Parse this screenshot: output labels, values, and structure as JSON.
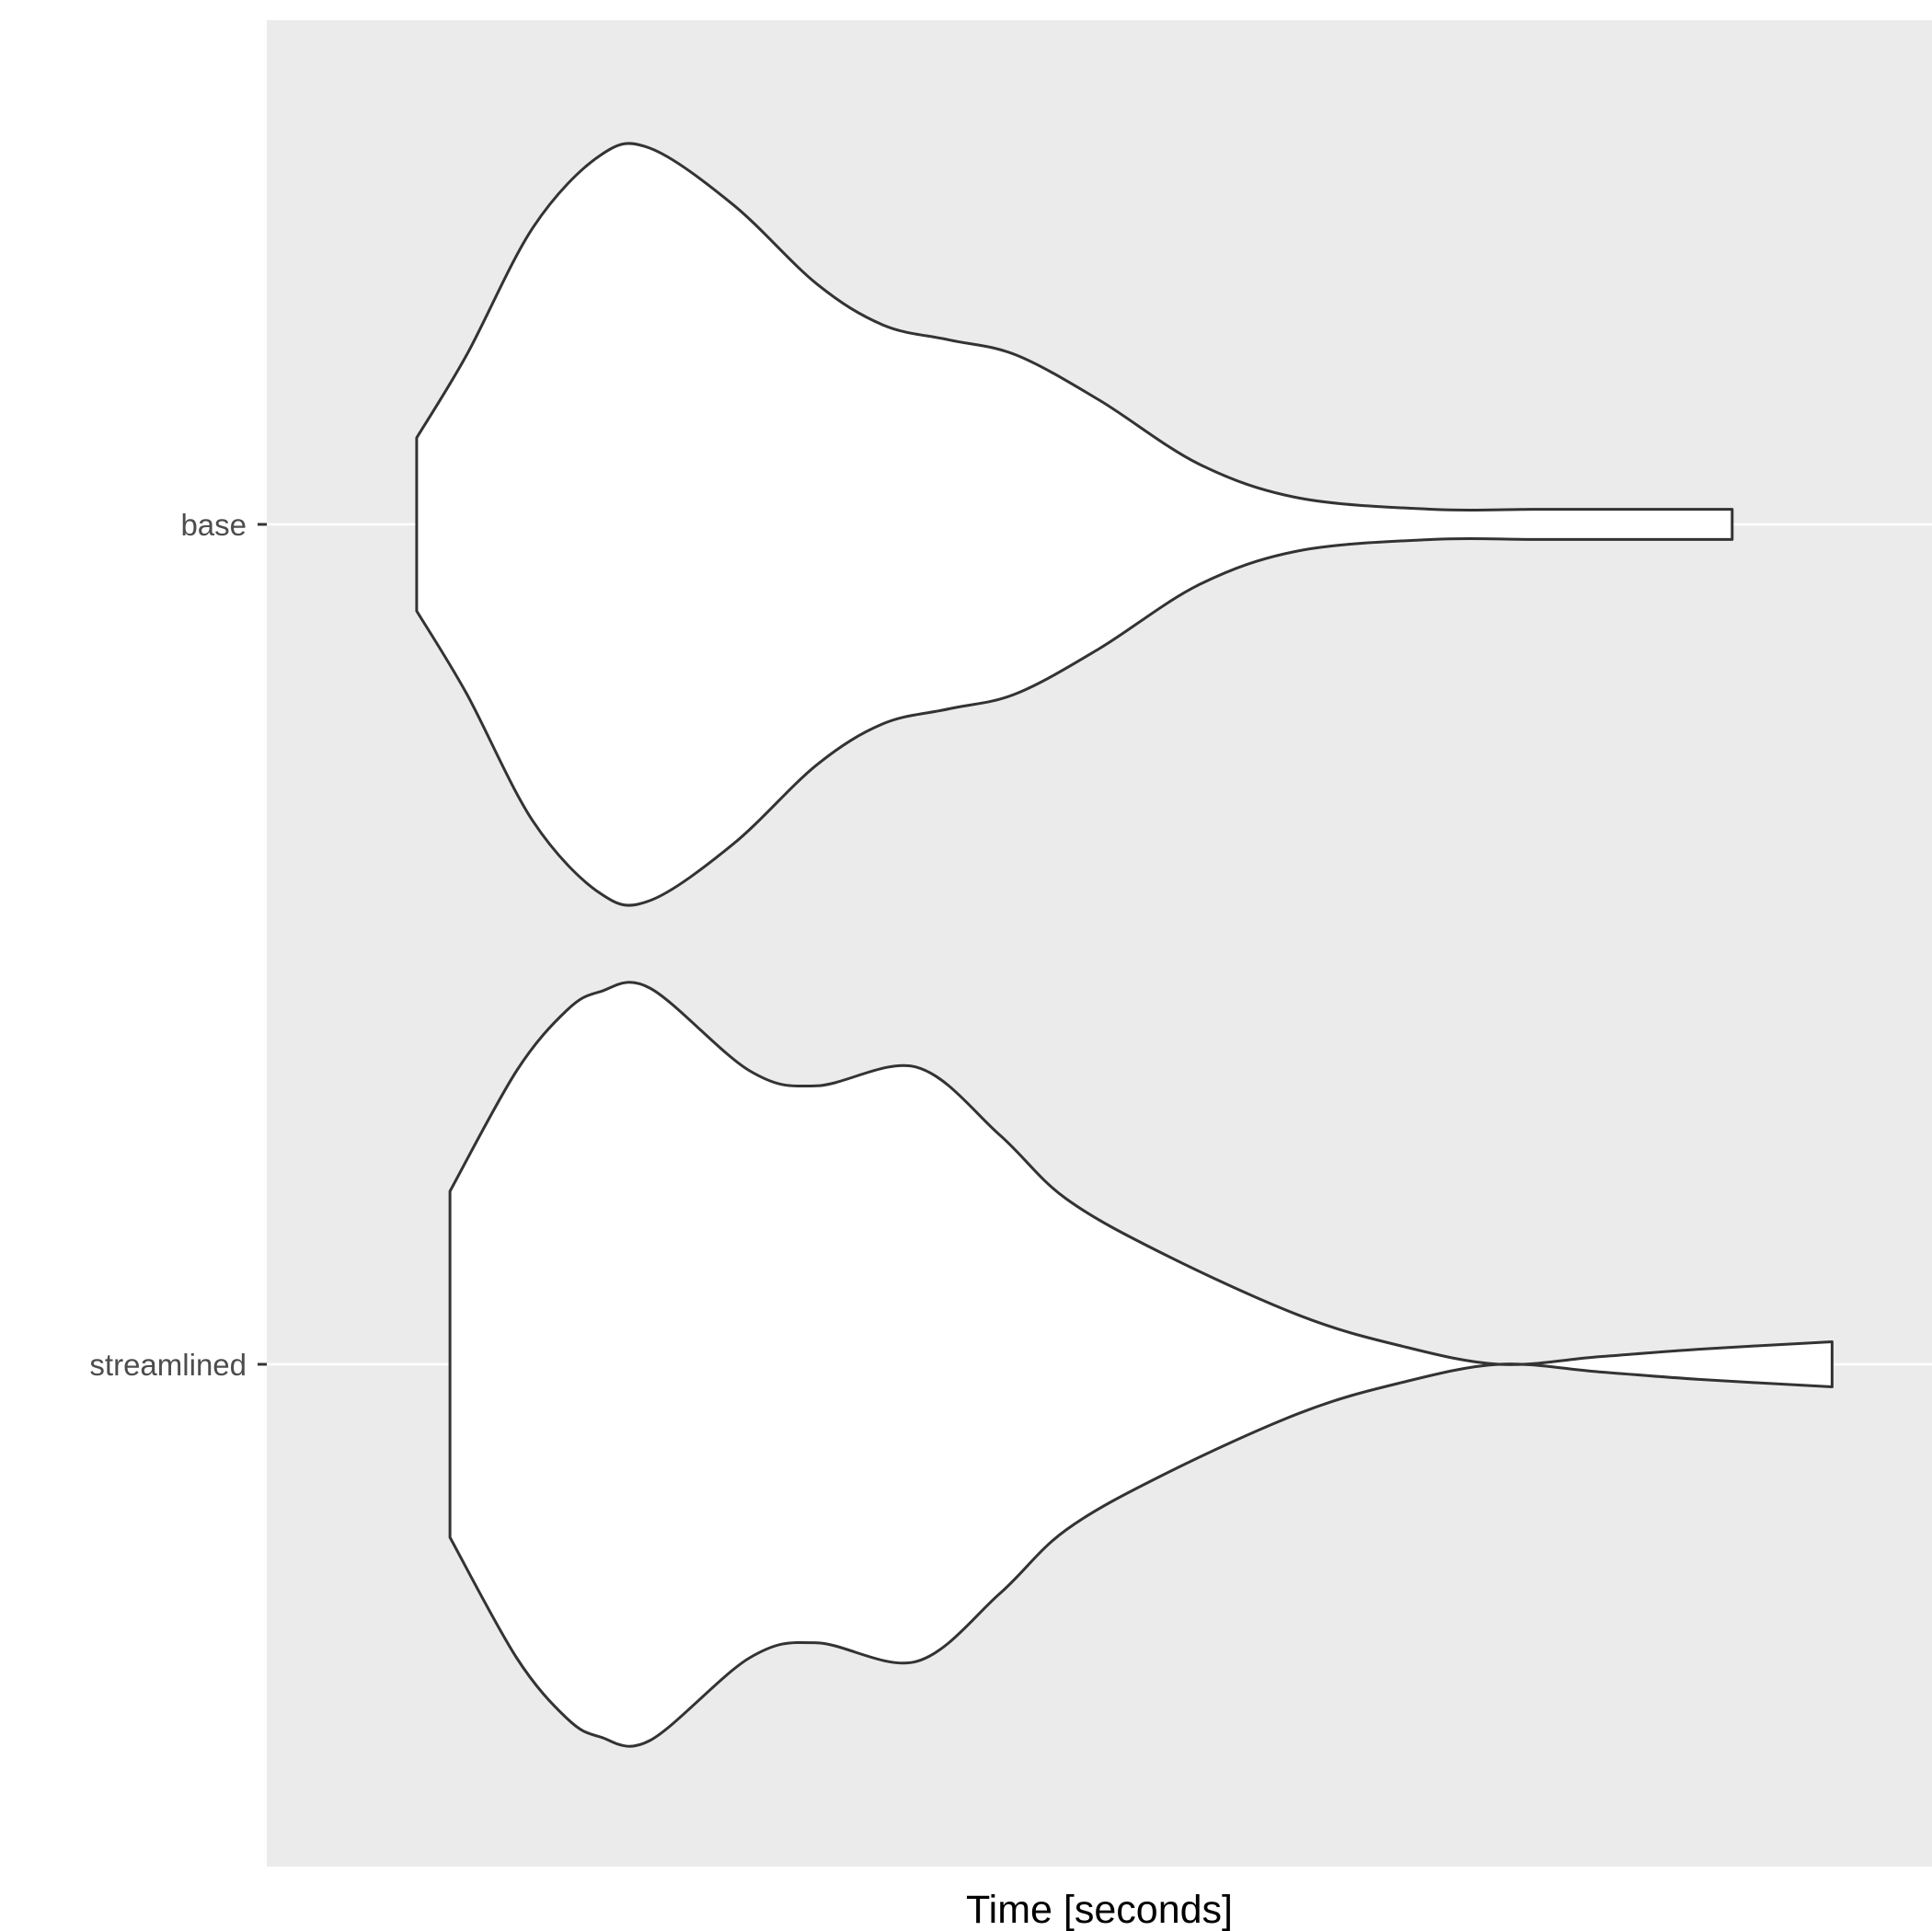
{
  "chart_data": {
    "type": "violin",
    "orientation": "horizontal",
    "xlabel": "Time [seconds]",
    "ylabel": "",
    "x_tick_labels": [],
    "categories": [
      "base",
      "streamlined"
    ],
    "grid": true,
    "legend": "none",
    "series": [
      {
        "category": "base",
        "range": [
          0.09,
          0.88
        ],
        "density": [
          [
            0.09,
            0.23
          ],
          [
            0.12,
            0.45
          ],
          [
            0.16,
            0.79
          ],
          [
            0.2,
            0.98
          ],
          [
            0.23,
            1.0
          ],
          [
            0.28,
            0.85
          ],
          [
            0.33,
            0.64
          ],
          [
            0.37,
            0.53
          ],
          [
            0.41,
            0.49
          ],
          [
            0.45,
            0.45
          ],
          [
            0.5,
            0.33
          ],
          [
            0.56,
            0.16
          ],
          [
            0.62,
            0.07
          ],
          [
            0.7,
            0.04
          ],
          [
            0.76,
            0.04
          ],
          [
            0.82,
            0.04
          ],
          [
            0.88,
            0.04
          ]
        ]
      },
      {
        "category": "streamlined",
        "range": [
          0.11,
          0.94
        ],
        "density": [
          [
            0.11,
            0.46
          ],
          [
            0.15,
            0.78
          ],
          [
            0.18,
            0.94
          ],
          [
            0.2,
            0.99
          ],
          [
            0.23,
            1.0
          ],
          [
            0.29,
            0.78
          ],
          [
            0.33,
            0.74
          ],
          [
            0.39,
            0.79
          ],
          [
            0.44,
            0.61
          ],
          [
            0.48,
            0.44
          ],
          [
            0.54,
            0.29
          ],
          [
            0.62,
            0.13
          ],
          [
            0.68,
            0.05
          ],
          [
            0.74,
            0.0
          ],
          [
            0.8,
            0.02
          ],
          [
            0.86,
            0.04
          ],
          [
            0.94,
            0.06
          ]
        ]
      }
    ],
    "colors": {
      "panel_background": "#ebebeb",
      "grid": "#ffffff",
      "violin_fill": "#ffffff",
      "violin_stroke": "#333333",
      "tick": "#333333"
    }
  }
}
